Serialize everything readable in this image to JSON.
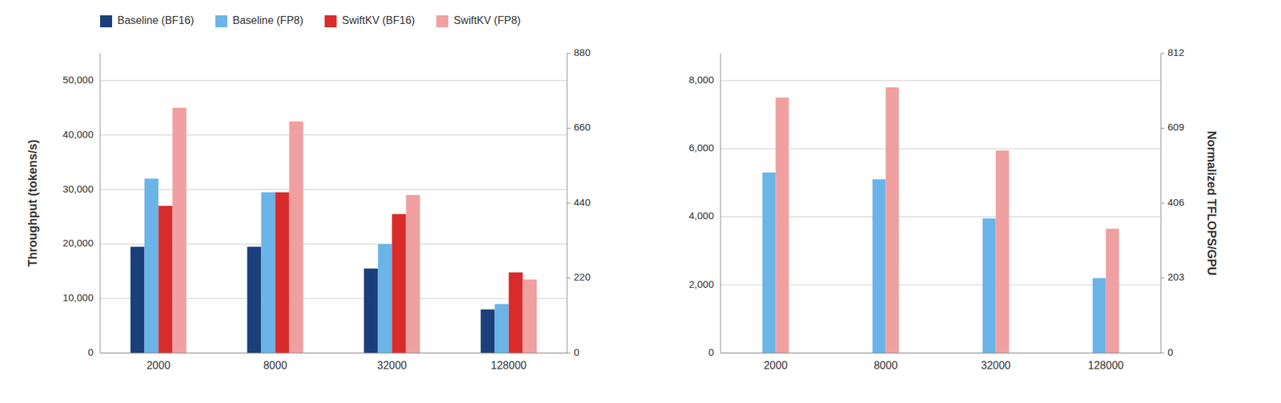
{
  "chart_data": [
    {
      "type": "bar",
      "y_label": "Throughput (tokens/s)",
      "categories": [
        "2000",
        "8000",
        "32000",
        "128000"
      ],
      "series": [
        {
          "name": "Baseline (BF16)",
          "color": "#1a3f7a",
          "values": [
            19500,
            19500,
            15500,
            8000
          ]
        },
        {
          "name": "Baseline (FP8)",
          "color": "#6ab4e8",
          "values": [
            32000,
            29500,
            20000,
            9000
          ]
        },
        {
          "name": "SwiftKV (BF16)",
          "color": "#d92b2b",
          "values": [
            27000,
            29500,
            25500,
            14800
          ]
        },
        {
          "name": "SwiftKV (FP8)",
          "color": "#f0a0a0",
          "values": [
            45000,
            42500,
            29000,
            13500
          ]
        }
      ],
      "ylim": [
        0,
        55000
      ],
      "yticks": [
        0,
        {
          "value": 10000,
          "label": "10,000"
        },
        {
          "value": 20000,
          "label": "20,000"
        },
        {
          "value": 30000,
          "label": "30,000"
        },
        {
          "value": 40000,
          "label": "40,000"
        },
        {
          "value": 50000,
          "label": "50,000"
        }
      ],
      "y2lim": [
        0,
        880
      ],
      "y2ticks": [
        0,
        220,
        440,
        660,
        880
      ],
      "grid": true,
      "legend": "top"
    },
    {
      "type": "bar",
      "y2_label": "Normalized TFLOPS/GPU",
      "categories": [
        "2000",
        "8000",
        "32000",
        "128000"
      ],
      "series": [
        {
          "name": "Baseline (FP8)",
          "color": "#6ab4e8",
          "values": [
            5300,
            5100,
            3950,
            2200
          ]
        },
        {
          "name": "SwiftKV (FP8)",
          "color": "#f0a0a0",
          "values": [
            7500,
            7800,
            5950,
            3650
          ]
        }
      ],
      "ylim": [
        0,
        8800
      ],
      "yticks": [
        0,
        {
          "value": 2000,
          "label": "2,000"
        },
        {
          "value": 4000,
          "label": "4,000"
        },
        {
          "value": 6000,
          "label": "6,000"
        },
        {
          "value": 8000,
          "label": "8,000"
        }
      ],
      "y2lim": [
        0,
        812
      ],
      "y2ticks": [
        0,
        203,
        406,
        609,
        812
      ],
      "grid": true
    }
  ]
}
